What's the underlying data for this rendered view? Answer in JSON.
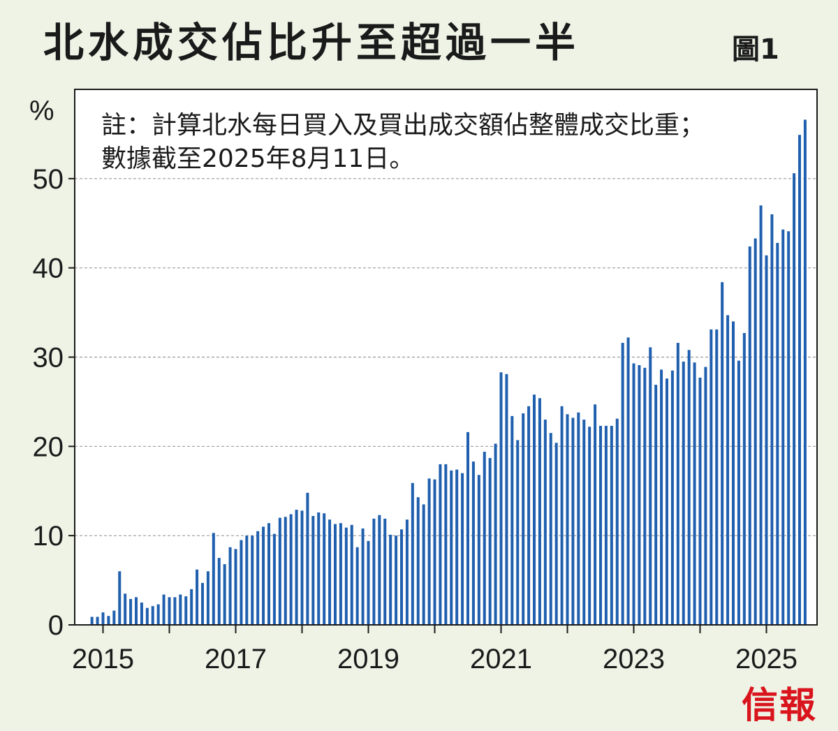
{
  "header": {
    "title": "北水成交佔比升至超過一半",
    "figure_label": "圖1"
  },
  "note": {
    "line1": "註：計算北水每日買入及買出成交額佔整體成交比重；",
    "line2": "數據截至2025年8月11日。"
  },
  "logo": {
    "text": "信報"
  },
  "colors": {
    "bar": "#1f5fae",
    "background": "#eef3e6",
    "plot_bg": "#ffffff",
    "logo": "#d9141c"
  },
  "chart_data": {
    "type": "bar",
    "title": "北水成交佔比升至超過一半",
    "ylabel": "%",
    "xlabel": "",
    "ylim": [
      0,
      60
    ],
    "yticks": [
      0,
      10,
      20,
      30,
      40,
      50
    ],
    "grid": "horizontal dashed",
    "x_tick_labels": [
      "2015",
      "2017",
      "2019",
      "2021",
      "2023",
      "2025"
    ],
    "x_start": "2014-11",
    "x_end": "2025-08",
    "frequency": "monthly",
    "values": [
      0.9,
      0.9,
      1.4,
      1.0,
      1.6,
      6.0,
      3.5,
      2.9,
      3.1,
      2.5,
      1.9,
      2.1,
      2.3,
      3.4,
      3.1,
      3.1,
      3.4,
      3.2,
      4.0,
      6.2,
      4.7,
      6.0,
      10.3,
      7.5,
      6.8,
      8.7,
      8.5,
      9.5,
      10.0,
      10.0,
      10.5,
      11.0,
      11.4,
      10.2,
      12.0,
      12.1,
      12.4,
      12.9,
      12.8,
      14.8,
      12.2,
      12.6,
      12.5,
      11.8,
      11.3,
      11.4,
      10.9,
      11.2,
      8.7,
      10.8,
      9.4,
      11.9,
      12.3,
      11.9,
      10.1,
      10.0,
      10.7,
      11.8,
      15.9,
      14.3,
      13.5,
      16.4,
      16.3,
      18.0,
      18.0,
      17.3,
      17.4,
      17.0,
      21.6,
      18.3,
      16.8,
      19.4,
      18.7,
      20.3,
      28.3,
      28.1,
      23.4,
      20.7,
      23.7,
      24.5,
      25.8,
      25.4,
      23.0,
      21.5,
      20.4,
      24.5,
      23.6,
      23.2,
      23.8,
      23.0,
      22.2,
      24.7,
      22.3,
      22.3,
      22.3,
      23.1,
      31.6,
      32.2,
      29.3,
      29.1,
      28.8,
      31.1,
      26.9,
      28.6,
      27.6,
      28.5,
      31.6,
      29.5,
      30.8,
      29.4,
      27.7,
      28.9,
      33.1,
      33.1,
      38.4,
      34.7,
      34.0,
      29.6,
      32.7,
      42.4,
      43.3,
      47.0,
      41.4,
      46.0,
      42.8,
      44.3,
      44.1,
      50.6,
      54.9,
      56.6
    ]
  }
}
